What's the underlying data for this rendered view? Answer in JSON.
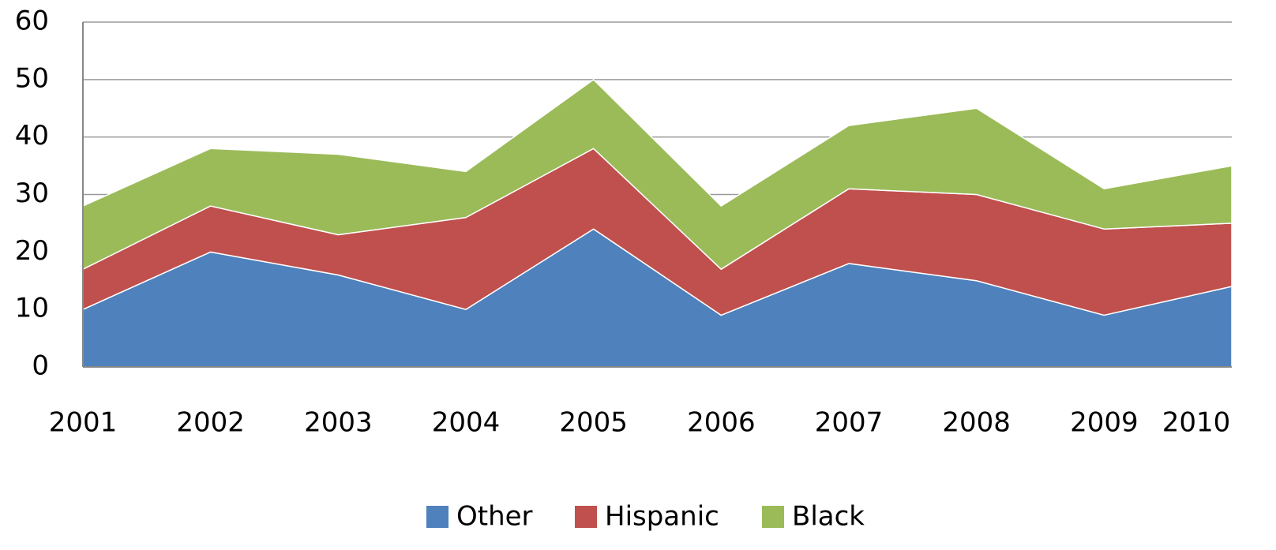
{
  "chart_data": {
    "type": "stacked_area",
    "categories": [
      "2001",
      "2002",
      "2003",
      "2004",
      "2005",
      "2006",
      "2007",
      "2008",
      "2009",
      "2010"
    ],
    "series": [
      {
        "name": "Other",
        "color": "#4f81bd",
        "values": [
          10,
          20,
          16,
          10,
          24,
          9,
          18,
          15,
          9,
          14
        ]
      },
      {
        "name": "Hispanic",
        "color": "#c0504d",
        "values": [
          7,
          8,
          7,
          16,
          14,
          8,
          13,
          15,
          15,
          11
        ]
      },
      {
        "name": "Black",
        "color": "#9bbb59",
        "values": [
          11,
          10,
          14,
          8,
          12,
          11,
          11,
          15,
          7,
          10
        ]
      }
    ],
    "ylim": [
      0,
      60
    ],
    "yticks": [
      0,
      10,
      20,
      30,
      40,
      50,
      60
    ],
    "grid": true,
    "legend": "bottom"
  }
}
